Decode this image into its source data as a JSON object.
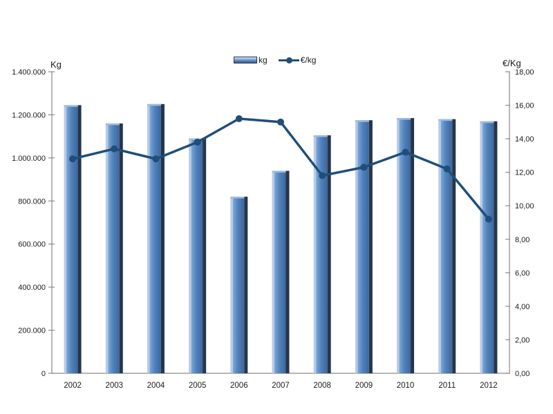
{
  "chart_data": {
    "type": "combo_bar_line",
    "title": "",
    "categories": [
      "2002",
      "2003",
      "2004",
      "2005",
      "2006",
      "2007",
      "2008",
      "2009",
      "2010",
      "2011",
      "2012"
    ],
    "series": [
      {
        "name": "kg",
        "type": "bar",
        "axis": "left",
        "values": [
          1245000,
          1160000,
          1250000,
          1090000,
          820000,
          940000,
          1105000,
          1175000,
          1185000,
          1180000,
          1170000
        ]
      },
      {
        "name": "€/kg",
        "type": "line",
        "axis": "right",
        "values": [
          12.8,
          13.4,
          12.8,
          13.8,
          15.2,
          15.0,
          11.8,
          12.3,
          13.2,
          12.2,
          9.2
        ]
      }
    ],
    "left_axis": {
      "title": "Kg",
      "min": 0,
      "max": 1400000,
      "tick_step": 200000,
      "tick_labels": [
        "0",
        "200.000",
        "400.000",
        "600.000",
        "800.000",
        "1.000.000",
        "1.200.000",
        "1.400.000"
      ]
    },
    "right_axis": {
      "title": "€/Kg",
      "min": 0,
      "max": 18,
      "tick_step": 2,
      "tick_labels": [
        "0,00",
        "2,00",
        "4,00",
        "6,00",
        "8,00",
        "10,00",
        "12,00",
        "14,00",
        "16,00",
        "18,00"
      ]
    },
    "legend": {
      "position": "top-center",
      "items": [
        {
          "label": "kg",
          "swatch": "bar"
        },
        {
          "label": "€/kg",
          "swatch": "line-marker"
        }
      ]
    },
    "grid": false,
    "colors": {
      "bar_fill": "#4f81bd",
      "bar_fill_light": "#7da7d9",
      "bar_edge_highlight": "#b9cbe3",
      "bar_edge_shadow": "#24364e",
      "bar_top_cap": "#9cbce0",
      "line": "#1f4e79",
      "axis_line": "#898989",
      "text": "#1a1a1a"
    }
  }
}
